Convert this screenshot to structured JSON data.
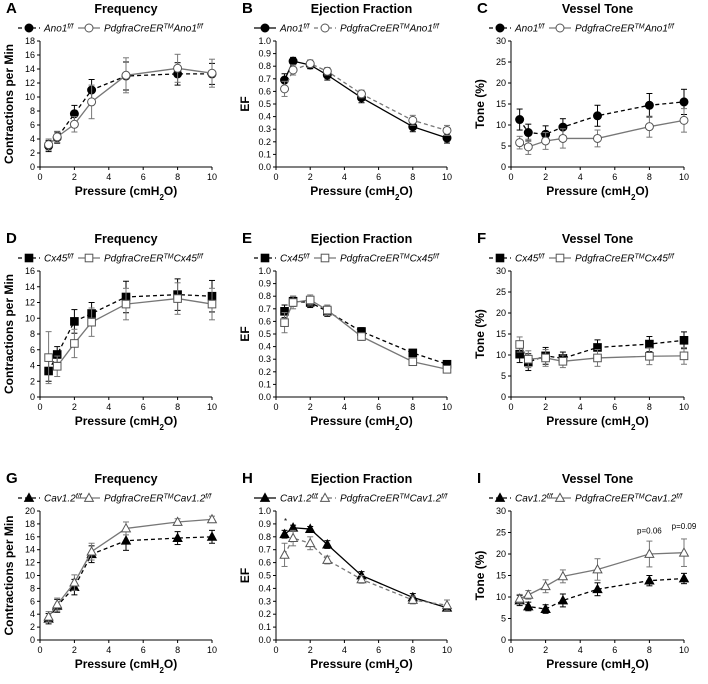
{
  "x_unit_label": "Pressure (cmH",
  "x_unit_sub": "2",
  "x_unit_end": "O)",
  "chart_data": [
    {
      "panel": "A",
      "type": "line",
      "title": "Frequency",
      "ylabel": "Contractions per Min",
      "ylim": [
        0,
        18
      ],
      "yticks": [
        0,
        2,
        4,
        6,
        8,
        10,
        12,
        14,
        16,
        18
      ],
      "xlim": [
        0,
        10
      ],
      "xticks": [
        0,
        2,
        4,
        6,
        8,
        10
      ],
      "x": [
        0.5,
        1,
        2,
        3,
        5,
        8,
        10
      ],
      "series": [
        {
          "name": "Ano1",
          "sup": "f/f",
          "prefix": "",
          "marker": "circle",
          "fill": "filled",
          "dash": "dashed",
          "values": [
            3,
            4.2,
            7.6,
            11,
            13,
            13.3,
            13.3
          ],
          "err": [
            0.8,
            0.8,
            1.2,
            1.5,
            2,
            1.6,
            1.5
          ]
        },
        {
          "name": "Ano1",
          "sup": "f/f",
          "prefix": "PdgfraCreER",
          "prefix_sup": "TM",
          "marker": "circle",
          "fill": "open",
          "dash": "solid",
          "values": [
            3.2,
            4.3,
            6.1,
            9.3,
            13.1,
            14.1,
            13.4
          ],
          "err": [
            0.8,
            0.8,
            1.1,
            2.4,
            2.5,
            2,
            2
          ]
        }
      ]
    },
    {
      "panel": "B",
      "type": "line",
      "title": "Ejection Fraction",
      "ylabel": "EF",
      "ylim": [
        0,
        1
      ],
      "yticks": [
        0,
        0.1,
        0.2,
        0.3,
        0.4,
        0.5,
        0.6,
        0.7,
        0.8,
        0.9,
        1.0
      ],
      "ytick_labels": [
        "0.0",
        "0.1",
        "0.2",
        "0.3",
        "0.4",
        "0.5",
        "0.6",
        "0.7",
        "0.8",
        "0.9",
        "1.0"
      ],
      "xlim": [
        0,
        10
      ],
      "xticks": [
        0,
        2,
        4,
        6,
        8,
        10
      ],
      "x": [
        0.5,
        1,
        2,
        3,
        5,
        8,
        10
      ],
      "series": [
        {
          "name": "Ano1",
          "sup": "f/f",
          "prefix": "",
          "marker": "circle",
          "fill": "filled",
          "dash": "solid",
          "values": [
            0.69,
            0.84,
            0.81,
            0.73,
            0.55,
            0.32,
            0.23
          ],
          "err": [
            0.05,
            0.03,
            0.03,
            0.04,
            0.04,
            0.04,
            0.04
          ]
        },
        {
          "name": "Ano1",
          "sup": "f/f",
          "prefix": "PdgfraCreER",
          "prefix_sup": "TM",
          "marker": "circle",
          "fill": "open",
          "dash": "dashed",
          "values": [
            0.62,
            0.77,
            0.82,
            0.76,
            0.58,
            0.37,
            0.29
          ],
          "err": [
            0.06,
            0.04,
            0.03,
            0.03,
            0.03,
            0.04,
            0.04
          ]
        }
      ]
    },
    {
      "panel": "C",
      "type": "line",
      "title": "Vessel Tone",
      "ylabel": "Tone (%)",
      "ylim": [
        0,
        30
      ],
      "yticks": [
        0,
        5,
        10,
        15,
        20,
        25,
        30
      ],
      "xlim": [
        0,
        10
      ],
      "xticks": [
        0,
        2,
        4,
        6,
        8,
        10
      ],
      "x": [
        0.5,
        1,
        2,
        3,
        5,
        8,
        10
      ],
      "series": [
        {
          "name": "Ano1",
          "sup": "f/f",
          "prefix": "",
          "marker": "circle",
          "fill": "filled",
          "dash": "dashed",
          "values": [
            11.3,
            8.2,
            7.8,
            9.5,
            12.2,
            14.7,
            15.5
          ],
          "err": [
            2.5,
            2,
            2,
            2,
            2.5,
            2.8,
            3
          ]
        },
        {
          "name": "Ano1",
          "sup": "f/f",
          "prefix": "PdgfraCreER",
          "prefix_sup": "TM",
          "marker": "circle",
          "fill": "open",
          "dash": "solid",
          "values": [
            5.8,
            4.8,
            6.2,
            6.8,
            6.8,
            9.6,
            11.1
          ],
          "err": [
            1.5,
            1.8,
            2,
            2.3,
            2,
            2.5,
            2.8
          ]
        }
      ]
    },
    {
      "panel": "D",
      "type": "line",
      "title": "Frequency",
      "ylabel": "Contractions per Min",
      "ylim": [
        0,
        16
      ],
      "yticks": [
        0,
        2,
        4,
        6,
        8,
        10,
        12,
        14,
        16
      ],
      "xlim": [
        0,
        10
      ],
      "xticks": [
        0,
        2,
        4,
        6,
        8,
        10
      ],
      "x": [
        0.5,
        1,
        2,
        3,
        5,
        8,
        10
      ],
      "series": [
        {
          "name": "Cx45",
          "sup": "f/f",
          "prefix": "",
          "marker": "square",
          "fill": "filled",
          "dash": "dashed",
          "values": [
            3.3,
            5.4,
            9.6,
            10.6,
            12.7,
            13,
            12.8
          ],
          "err": [
            1.3,
            1,
            1.5,
            1.4,
            2,
            2,
            2
          ]
        },
        {
          "name": "Cx45",
          "sup": "f/f",
          "prefix": "PdgfraCreER",
          "prefix_sup": "TM",
          "marker": "square",
          "fill": "open",
          "dash": "solid",
          "values": [
            5,
            3.9,
            6.8,
            9.5,
            11.8,
            12.5,
            11.8
          ],
          "err": [
            3.3,
            1.3,
            1.8,
            1.8,
            2,
            2,
            2
          ]
        }
      ]
    },
    {
      "panel": "E",
      "type": "line",
      "title": "Ejection Fraction",
      "ylabel": "EF",
      "ylim": [
        0,
        1
      ],
      "yticks": [
        0,
        0.1,
        0.2,
        0.3,
        0.4,
        0.5,
        0.6,
        0.7,
        0.8,
        0.9,
        1.0
      ],
      "ytick_labels": [
        "0.0",
        "0.1",
        "0.2",
        "0.3",
        "0.4",
        "0.5",
        "0.6",
        "0.7",
        "0.8",
        "0.9",
        "1.0"
      ],
      "xlim": [
        0,
        10
      ],
      "xticks": [
        0,
        2,
        4,
        6,
        8,
        10
      ],
      "x": [
        0.5,
        1,
        2,
        3,
        5,
        8,
        10
      ],
      "series": [
        {
          "name": "Cx45",
          "sup": "f/f",
          "prefix": "",
          "marker": "square",
          "fill": "filled",
          "dash": "dashed",
          "values": [
            0.68,
            0.76,
            0.75,
            0.68,
            0.52,
            0.35,
            0.26
          ],
          "err": [
            0.05,
            0.04,
            0.04,
            0.04,
            0.03,
            0.02,
            0.02
          ]
        },
        {
          "name": "Cx45",
          "sup": "f/f",
          "prefix": "PdgfraCreER",
          "prefix_sup": "TM",
          "marker": "square",
          "fill": "open",
          "dash": "solid",
          "values": [
            0.59,
            0.75,
            0.77,
            0.69,
            0.48,
            0.28,
            0.22
          ],
          "err": [
            0.08,
            0.05,
            0.04,
            0.04,
            0.03,
            0.02,
            0.02
          ]
        }
      ]
    },
    {
      "panel": "F",
      "type": "line",
      "title": "Vessel Tone",
      "ylabel": "Tone (%)",
      "ylim": [
        0,
        30
      ],
      "yticks": [
        0,
        5,
        10,
        15,
        20,
        25,
        30
      ],
      "xlim": [
        0,
        10
      ],
      "xticks": [
        0,
        2,
        4,
        6,
        8,
        10
      ],
      "x": [
        0.5,
        1,
        2,
        3,
        5,
        8,
        10
      ],
      "series": [
        {
          "name": "Cx45",
          "sup": "f/f",
          "prefix": "",
          "marker": "square",
          "fill": "filled",
          "dash": "dashed",
          "values": [
            10.2,
            8.3,
            9.8,
            9.2,
            11.8,
            12.6,
            13.5
          ],
          "err": [
            2,
            2,
            2,
            1.5,
            1.8,
            1.8,
            2
          ]
        },
        {
          "name": "Cx45",
          "sup": "f/f",
          "prefix": "PdgfraCreER",
          "prefix_sup": "TM",
          "marker": "square",
          "fill": "open",
          "dash": "solid",
          "values": [
            12.5,
            9,
            9.3,
            8.5,
            9.3,
            9.7,
            9.8
          ],
          "err": [
            1.8,
            2,
            2,
            1.5,
            2,
            2,
            2
          ]
        }
      ]
    },
    {
      "panel": "G",
      "type": "line",
      "title": "Frequency",
      "ylabel": "Contractions per Min",
      "ylim": [
        0,
        20
      ],
      "yticks": [
        0,
        2,
        4,
        6,
        8,
        10,
        12,
        14,
        16,
        18,
        20
      ],
      "xlim": [
        0,
        10
      ],
      "xticks": [
        0,
        2,
        4,
        6,
        8,
        10
      ],
      "x": [
        0.5,
        1,
        2,
        3,
        5,
        8,
        10
      ],
      "series": [
        {
          "name": "Cav1.2",
          "sup": "f/f",
          "prefix": "",
          "marker": "triangle",
          "fill": "filled",
          "dash": "dashed",
          "values": [
            3.3,
            5.3,
            8.2,
            13.3,
            15.4,
            15.8,
            16
          ],
          "err": [
            0.8,
            1,
            1.2,
            1.3,
            1.5,
            1,
            1
          ]
        },
        {
          "name": "Cav1.2",
          "sup": "f/f",
          "prefix": "PdgfraCreER",
          "prefix_sup": "TM",
          "marker": "triangle",
          "fill": "open",
          "dash": "solid",
          "values": [
            3.6,
            5.5,
            8.9,
            13.7,
            17.3,
            18.3,
            18.7
          ],
          "err": [
            0.8,
            1,
            1.2,
            1.3,
            1,
            0.5,
            0.5
          ]
        }
      ]
    },
    {
      "panel": "H",
      "type": "line",
      "title": "Ejection Fraction",
      "ylabel": "EF",
      "ylim": [
        0,
        1
      ],
      "yticks": [
        0,
        0.1,
        0.2,
        0.3,
        0.4,
        0.5,
        0.6,
        0.7,
        0.8,
        0.9,
        1.0
      ],
      "ytick_labels": [
        "0.0",
        "0.1",
        "0.2",
        "0.3",
        "0.4",
        "0.5",
        "0.6",
        "0.7",
        "0.8",
        "0.9",
        "1.0"
      ],
      "xlim": [
        0,
        10
      ],
      "xticks": [
        0,
        2,
        4,
        6,
        8,
        10
      ],
      "x": [
        0.5,
        1,
        2,
        3,
        5,
        8,
        10
      ],
      "series": [
        {
          "name": "Cav1.2",
          "sup": "f/f",
          "prefix": "",
          "marker": "triangle",
          "fill": "filled",
          "dash": "solid",
          "values": [
            0.82,
            0.87,
            0.86,
            0.74,
            0.5,
            0.33,
            0.25
          ],
          "err": [
            0.03,
            0.02,
            0.02,
            0.03,
            0.03,
            0.03,
            0.02
          ]
        },
        {
          "name": "Cav1.2",
          "sup": "f/f",
          "prefix": "PdgfraCreER",
          "prefix_sup": "TM",
          "marker": "triangle",
          "fill": "open",
          "dash": "dashed",
          "values": [
            0.66,
            0.79,
            0.75,
            0.62,
            0.47,
            0.31,
            0.27
          ],
          "err": [
            0.09,
            0.06,
            0.05,
            0.03,
            0.03,
            0.03,
            0.04
          ]
        }
      ]
    },
    {
      "panel": "I",
      "type": "line",
      "title": "Vessel Tone",
      "ylabel": "Tone (%)",
      "ylim": [
        0,
        30
      ],
      "yticks": [
        0,
        5,
        10,
        15,
        20,
        25,
        30
      ],
      "xlim": [
        0,
        10
      ],
      "xticks": [
        0,
        2,
        4,
        6,
        8,
        10
      ],
      "x": [
        0.5,
        1,
        2,
        3,
        5,
        8,
        10
      ],
      "series": [
        {
          "name": "Cav1.2",
          "sup": "f/f",
          "prefix": "",
          "marker": "triangle",
          "fill": "filled",
          "dash": "dashed",
          "values": [
            9.2,
            7.8,
            7.2,
            9.2,
            11.8,
            13.8,
            14.3
          ],
          "err": [
            1.2,
            1,
            1,
            1.5,
            1.5,
            1.2,
            1.2
          ]
        },
        {
          "name": "Cav1.2",
          "sup": "f/f",
          "prefix": "PdgfraCreER",
          "prefix_sup": "TM",
          "marker": "triangle",
          "fill": "open",
          "dash": "solid",
          "values": [
            9.6,
            10.5,
            12.5,
            14.8,
            16.4,
            20,
            20.3
          ],
          "err": [
            1,
            1,
            1.5,
            1.5,
            2.5,
            3,
            3.2
          ]
        }
      ]
    }
  ],
  "annotations": {
    "H_star": "*",
    "I_p1": "p=0.06",
    "I_p2": "p=0.09"
  },
  "colors": {
    "series_a": "#000000",
    "series_b": "#777777"
  }
}
